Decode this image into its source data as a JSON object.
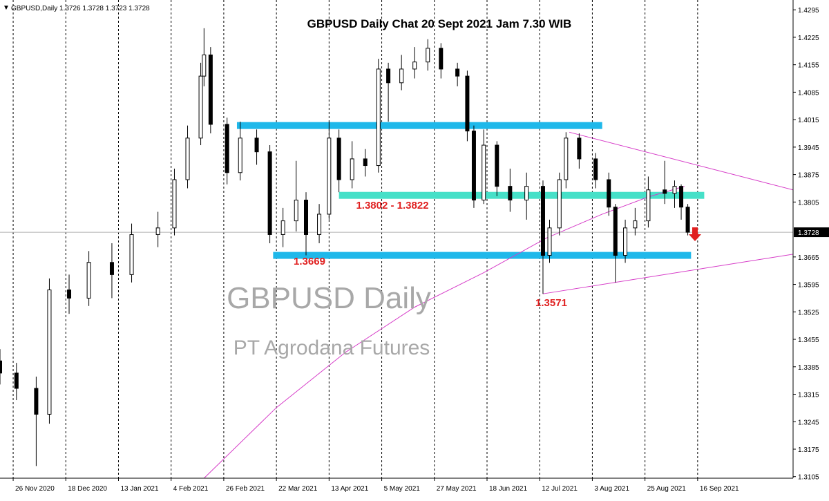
{
  "chart_data": {
    "type": "candlestick",
    "title": "GBPUSD Daily Chat 20 Sept 2021 Jam 7.30 WIB",
    "symbol_info": "GBPUSD,Daily  1.3726 1.3728 1.3723 1.3728",
    "watermarks": [
      "GBPUSD Daily",
      "PT Agrodana Futures"
    ],
    "xlim": [
      0,
      241
    ],
    "ylim": [
      1.3101,
      1.432
    ],
    "yticks": [
      1.4295,
      1.4225,
      1.4155,
      1.4085,
      1.4015,
      1.3945,
      1.3875,
      1.3805,
      1.3665,
      1.3595,
      1.3525,
      1.3455,
      1.3385,
      1.3315,
      1.3245,
      1.3175,
      1.3105
    ],
    "xticks": [
      {
        "value": 4,
        "label": "26 Nov 2020"
      },
      {
        "value": 20,
        "label": "18 Dec 2020"
      },
      {
        "value": 36,
        "label": "13 Jan 2021"
      },
      {
        "value": 52,
        "label": "4 Feb 2021"
      },
      {
        "value": 68,
        "label": "26 Feb 2021"
      },
      {
        "value": 84,
        "label": "22 Mar 2021"
      },
      {
        "value": 100,
        "label": "13 Apr 2021"
      },
      {
        "value": 116,
        "label": "5 May 2021"
      },
      {
        "value": 132,
        "label": "27 May 2021"
      },
      {
        "value": 148,
        "label": "18 Jun 2021"
      },
      {
        "value": 164,
        "label": "12 Jul 2021"
      },
      {
        "value": 180,
        "label": "3 Aug 2021"
      },
      {
        "value": 196,
        "label": "25 Aug 2021"
      },
      {
        "value": 212,
        "label": "16 Sep 2021"
      }
    ],
    "grid": true,
    "last_price": 1.3728,
    "x": [
      0,
      5,
      11,
      15,
      21,
      27,
      34,
      40,
      48,
      53,
      57,
      61,
      62,
      64,
      69,
      73,
      78,
      82,
      86,
      90,
      93,
      97,
      100,
      103,
      107,
      111,
      115,
      118,
      122,
      126,
      130,
      134,
      139,
      142,
      144,
      147,
      151,
      155,
      160,
      165,
      167,
      170,
      172,
      176,
      181,
      185,
      187,
      190,
      193,
      197,
      202,
      205,
      207,
      209
    ],
    "open": [
      1.34,
      1.3369,
      1.333,
      1.3264,
      1.3581,
      1.356,
      1.3651,
      1.362,
      1.3722,
      1.3739,
      1.3862,
      1.3968,
      1.4126,
      1.418,
      1.4003,
      1.388,
      1.3968,
      1.3933,
      1.3722,
      1.3757,
      1.381,
      1.3722,
      1.3774,
      1.3968,
      1.3862,
      1.3915,
      1.3898,
      1.4144,
      1.4109,
      1.4144,
      1.4162,
      1.4197,
      1.4144,
      1.4126,
      1.3986,
      1.381,
      1.395,
      1.3845,
      1.381,
      1.3845,
      1.3669,
      1.3739,
      1.3862,
      1.3968,
      1.3915,
      1.3862,
      1.3792,
      1.3669,
      1.3739,
      1.3757,
      1.3836,
      1.3827,
      1.3845,
      1.3792
    ],
    "high": [
      1.343,
      1.3395,
      1.336,
      1.361,
      1.362,
      1.368,
      1.37,
      1.375,
      1.378,
      1.389,
      1.4,
      1.416,
      1.4248,
      1.42,
      1.402,
      1.401,
      1.399,
      1.395,
      1.379,
      1.391,
      1.383,
      1.38,
      1.401,
      1.399,
      1.396,
      1.394,
      1.417,
      1.416,
      1.418,
      1.42,
      1.422,
      1.421,
      1.416,
      1.414,
      1.4,
      1.399,
      1.396,
      1.389,
      1.388,
      1.386,
      1.376,
      1.388,
      1.3983,
      1.398,
      1.393,
      1.388,
      1.38,
      1.376,
      1.379,
      1.387,
      1.391,
      1.386,
      1.385,
      1.38
    ],
    "low": [
      1.334,
      1.33,
      1.3132,
      1.324,
      1.352,
      1.354,
      1.356,
      1.36,
      1.369,
      1.372,
      1.384,
      1.395,
      1.41,
      1.398,
      1.385,
      1.386,
      1.39,
      1.37,
      1.369,
      1.373,
      1.3669,
      1.37,
      1.376,
      1.383,
      1.384,
      1.387,
      1.388,
      1.401,
      1.409,
      1.412,
      1.414,
      1.412,
      1.41,
      1.396,
      1.379,
      1.38,
      1.382,
      1.378,
      1.376,
      1.3571,
      1.365,
      1.372,
      1.384,
      1.389,
      1.384,
      1.377,
      1.36,
      1.365,
      1.372,
      1.374,
      1.38,
      1.379,
      1.376,
      1.372
    ],
    "close": [
      1.3369,
      1.333,
      1.3264,
      1.3581,
      1.356,
      1.3651,
      1.362,
      1.3722,
      1.3739,
      1.3862,
      1.3968,
      1.4126,
      1.418,
      1.4003,
      1.388,
      1.3968,
      1.3933,
      1.3722,
      1.3757,
      1.381,
      1.3722,
      1.3774,
      1.3968,
      1.3862,
      1.3915,
      1.3898,
      1.4144,
      1.4109,
      1.4144,
      1.4162,
      1.4197,
      1.4144,
      1.4126,
      1.3986,
      1.381,
      1.395,
      1.3845,
      1.381,
      1.3845,
      1.3669,
      1.3739,
      1.3862,
      1.3968,
      1.3915,
      1.3862,
      1.3792,
      1.3669,
      1.3739,
      1.3757,
      1.3836,
      1.3827,
      1.3845,
      1.3792,
      1.3728
    ],
    "moving_average": {
      "color": "#d63cc8",
      "x": [
        62,
        84,
        105,
        126,
        147,
        166,
        183,
        197,
        208
      ],
      "values": [
        1.3101,
        1.3281,
        1.3422,
        1.3537,
        1.3625,
        1.3713,
        1.3774,
        1.3818,
        1.3845
      ]
    },
    "levels": [
      {
        "from": 72,
        "to": 183,
        "value": 1.4,
        "color": "#1fb8ea"
      },
      {
        "from": 103,
        "to": 214,
        "value": 1.3822,
        "color": "#46e0c8"
      },
      {
        "from": 83,
        "to": 210,
        "value": 1.3669,
        "color": "#1fb8ea"
      }
    ],
    "trendlines": [
      {
        "color": "#d63cc8",
        "x": [
          173,
          241
        ],
        "values": [
          1.3983,
          1.3836
        ]
      },
      {
        "color": "#d63cc8",
        "x": [
          165,
          241
        ],
        "values": [
          1.3571,
          1.3672
        ]
      }
    ],
    "annotations": [
      "1.3802 - 1.3822",
      "1.3669",
      "1.3571"
    ]
  }
}
